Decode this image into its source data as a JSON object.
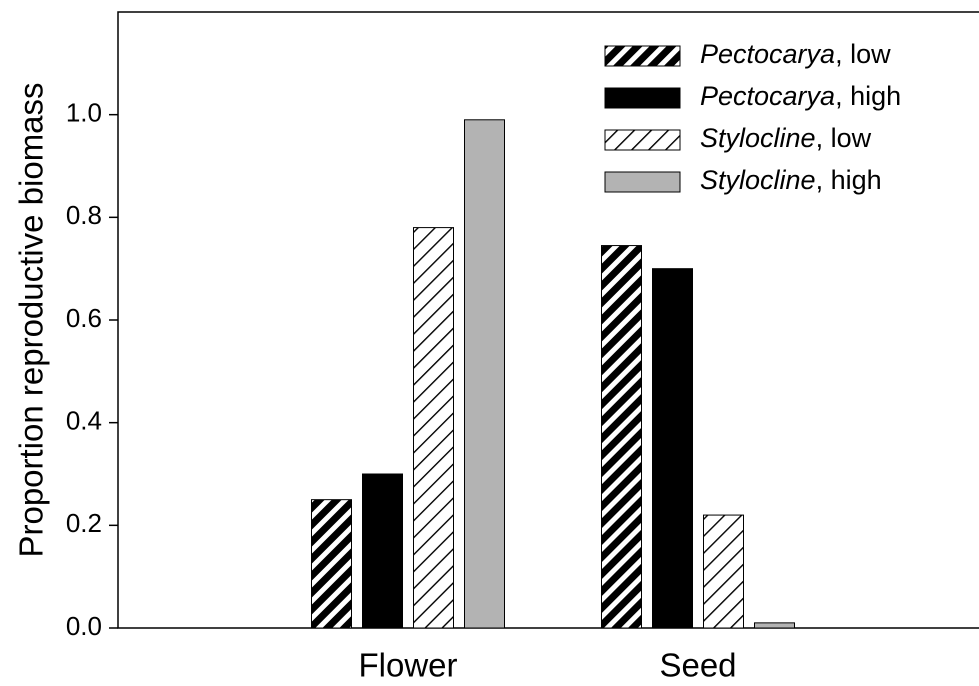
{
  "chart_data": {
    "type": "bar",
    "ylabel": "Proportion reproductive biomass",
    "categories": [
      "Flower",
      "Seed"
    ],
    "series": [
      {
        "name": "Pectocarya, low",
        "color": "#000000",
        "hatch": "heavy",
        "values": [
          0.25,
          0.745
        ]
      },
      {
        "name": "Pectocarya, high",
        "color": "#000000",
        "hatch": "none",
        "values": [
          0.3,
          0.7
        ]
      },
      {
        "name": "Stylocline, low",
        "color": "#000000",
        "hatch": "light",
        "values": [
          0.78,
          0.22
        ]
      },
      {
        "name": "Stylocline, high",
        "color": "#b3b3b3",
        "hatch": "none",
        "values": [
          0.99,
          0.01
        ]
      }
    ],
    "ylim": [
      0,
      1.2
    ],
    "yticks": [
      {
        "value": 0,
        "label": "0.0"
      },
      {
        "value": 0.2,
        "label": "0.2"
      },
      {
        "value": 0.4,
        "label": "0.4"
      },
      {
        "value": 0.6,
        "label": "0.6"
      },
      {
        "value": 0.8,
        "label": "0.8"
      },
      {
        "value": 1.0,
        "label": "1.0"
      }
    ],
    "legend": "upper right"
  }
}
